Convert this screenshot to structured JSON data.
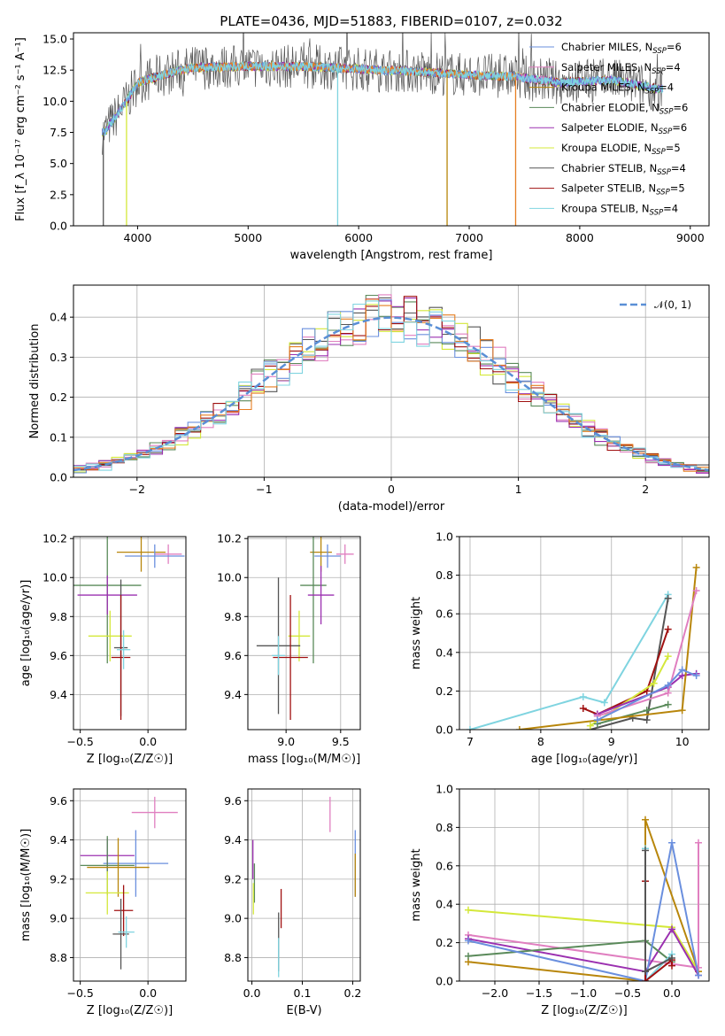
{
  "figure_title": "PLATE=0436, MJD=51883, FIBERID=0107, z=0.032",
  "colors": {
    "Chabrier MILES": "#6a8fde",
    "Salpeter MILES": "#e07fc0",
    "Kroupa MILES": "#b8860b",
    "Chabrier ELODIE": "#5a8a5a",
    "Salpeter ELODIE": "#9b30b0",
    "Kroupa ELODIE": "#d4e83a",
    "Chabrier STELIB": "#555555",
    "Salpeter STELIB": "#a01010",
    "Kroupa STELIB": "#7fd4e0",
    "orange": "#e67e22",
    "normal_curve": "#5a8fd6"
  },
  "chart_data": [
    {
      "id": "spectrum",
      "type": "line",
      "title": "PLATE=0436, MJD=51883, FIBERID=0107, z=0.032",
      "xlabel": "wavelength [Angstrom, rest frame]",
      "ylabel": "Flux [f_λ 10⁻¹⁷ erg cm⁻² s⁻¹ A⁻¹]",
      "xlim": [
        3420,
        9170
      ],
      "ylim": [
        0,
        15.5
      ],
      "xticks": [
        "4000",
        "5000",
        "6000",
        "7000",
        "8000",
        "9000"
      ],
      "yticks": [
        "0.0",
        "2.5",
        "5.0",
        "7.5",
        "10.0",
        "12.5",
        "15.0"
      ],
      "grid": false,
      "legend_position": "upper-right",
      "legend": [
        {
          "model": "Chabrier MILES",
          "n": "6"
        },
        {
          "model": "Salpeter MILES",
          "n": "4"
        },
        {
          "model": "Kroupa MILES",
          "n": "4"
        },
        {
          "model": "Chabrier ELODIE",
          "n": "6"
        },
        {
          "model": "Salpeter ELODIE",
          "n": "6"
        },
        {
          "model": "Kroupa ELODIE",
          "n": "5"
        },
        {
          "model": "Chabrier STELIB",
          "n": "4"
        },
        {
          "model": "Salpeter STELIB",
          "n": "5"
        },
        {
          "model": "Kroupa STELIB",
          "n": "4"
        }
      ],
      "continuum": {
        "x": [
          3700,
          3900,
          4000,
          4300,
          4500,
          5000,
          5500,
          6000,
          6500,
          7000,
          7400,
          7800,
          8300,
          8700
        ],
        "y": [
          7.5,
          10.0,
          11.5,
          12.3,
          12.7,
          12.8,
          12.8,
          12.6,
          12.4,
          12.1,
          12.0,
          11.5,
          11.7,
          11.0
        ]
      }
    },
    {
      "id": "residual_histogram",
      "type": "histogram",
      "xlabel": "(data-model)/error",
      "ylabel": "Normed distribution",
      "xlim": [
        -2.5,
        2.5
      ],
      "ylim": [
        0,
        0.48
      ],
      "xticks": [
        "−2",
        "−1",
        "0",
        "1",
        "2"
      ],
      "yticks": [
        "0.0",
        "0.1",
        "0.2",
        "0.3",
        "0.4"
      ],
      "grid": true,
      "legend_position": "upper-right",
      "legend": [
        "𝒩(0, 1)"
      ],
      "bin_width": 0.1
    },
    {
      "id": "age_vs_Z",
      "type": "errorbar",
      "xlabel": "Z [log₁₀(Z/Z☉)]",
      "ylabel": "age  [log₁₀(age/yr)]",
      "xlim": [
        -0.55,
        0.28
      ],
      "ylim": [
        9.22,
        10.21
      ],
      "xticks": [
        "−0.5",
        "0.0"
      ],
      "yticks": [
        "9.4",
        "9.6",
        "9.8",
        "10.0",
        "10.2"
      ],
      "grid": true,
      "points": [
        {
          "model": "Kroupa MILES",
          "x": -0.05,
          "y": 10.13,
          "xerr": 0.18,
          "yerr": 0.1
        },
        {
          "model": "Salpeter MILES",
          "x": 0.15,
          "y": 10.12,
          "xerr": 0.1,
          "yerr": 0.05
        },
        {
          "model": "Chabrier MILES",
          "x": 0.05,
          "y": 10.11,
          "xerr": 0.22,
          "yerr": 0.06
        },
        {
          "model": "Chabrier ELODIE",
          "x": -0.3,
          "y": 9.96,
          "xerr": 0.25,
          "yerr": 0.4
        },
        {
          "model": "Salpeter ELODIE",
          "x": -0.3,
          "y": 9.91,
          "xerr": 0.22,
          "yerr": 0.1
        },
        {
          "model": "Kroupa ELODIE",
          "x": -0.28,
          "y": 9.7,
          "xerr": 0.16,
          "yerr": 0.13
        },
        {
          "model": "Chabrier STELIB",
          "x": -0.2,
          "y": 9.64,
          "xerr": 0.05,
          "yerr": 0.35
        },
        {
          "model": "Salpeter STELIB",
          "x": -0.2,
          "y": 9.59,
          "xerr": 0.07,
          "yerr": 0.32
        },
        {
          "model": "Kroupa STELIB",
          "x": -0.18,
          "y": 9.63,
          "xerr": 0.05,
          "yerr": 0.1
        }
      ]
    },
    {
      "id": "age_vs_mass",
      "type": "errorbar",
      "xlabel": "mass [log₁₀(M/M☉)]",
      "ylim": [
        9.22,
        10.21
      ],
      "xlim": [
        8.65,
        9.68
      ],
      "xticks": [
        "9.0",
        "9.5"
      ],
      "yticks": [
        "9.4",
        "9.6",
        "9.8",
        "10.0",
        "10.2"
      ],
      "grid": true,
      "points": [
        {
          "model": "Kroupa MILES",
          "x": 9.32,
          "y": 10.13,
          "xerr": 0.1,
          "yerr": 0.1
        },
        {
          "model": "Salpeter MILES",
          "x": 9.54,
          "y": 10.12,
          "xerr": 0.08,
          "yerr": 0.05
        },
        {
          "model": "Chabrier MILES",
          "x": 9.38,
          "y": 10.11,
          "xerr": 0.12,
          "yerr": 0.06
        },
        {
          "model": "Chabrier ELODIE",
          "x": 9.25,
          "y": 9.96,
          "xerr": 0.12,
          "yerr": 0.4
        },
        {
          "model": "Salpeter ELODIE",
          "x": 9.32,
          "y": 9.91,
          "xerr": 0.12,
          "yerr": 0.15
        },
        {
          "model": "Kroupa ELODIE",
          "x": 9.12,
          "y": 9.7,
          "xerr": 0.1,
          "yerr": 0.13
        },
        {
          "model": "Chabrier STELIB",
          "x": 8.93,
          "y": 9.65,
          "xerr": 0.2,
          "yerr": 0.35
        },
        {
          "model": "Salpeter STELIB",
          "x": 9.04,
          "y": 9.59,
          "xerr": 0.16,
          "yerr": 0.32
        },
        {
          "model": "Kroupa STELIB",
          "x": 8.93,
          "y": 9.6,
          "xerr": 0.06,
          "yerr": 0.1
        }
      ]
    },
    {
      "id": "mass_weight_vs_age",
      "type": "line",
      "xlabel": "age  [log₁₀(age/yr)]",
      "ylabel": "mass weight",
      "xlim": [
        6.85,
        10.38
      ],
      "ylim": [
        0,
        1
      ],
      "xticks": [
        "7",
        "8",
        "9",
        "10"
      ],
      "yticks": [
        "0.0",
        "0.2",
        "0.4",
        "0.6",
        "0.8",
        "1.0"
      ],
      "grid": true,
      "series": [
        {
          "model": "Kroupa STELIB",
          "x": [
            7.0,
            8.6,
            8.9,
            9.8
          ],
          "y": [
            0.0,
            0.17,
            0.14,
            0.7
          ]
        },
        {
          "model": "Chabrier STELIB",
          "x": [
            8.7,
            9.3,
            9.5,
            9.8
          ],
          "y": [
            0.0,
            0.06,
            0.05,
            0.68
          ]
        },
        {
          "model": "Salpeter STELIB",
          "x": [
            8.6,
            8.8,
            9.5,
            9.8
          ],
          "y": [
            0.11,
            0.08,
            0.2,
            0.52
          ]
        },
        {
          "model": "Kroupa ELODIE",
          "x": [
            8.7,
            9.6,
            9.8
          ],
          "y": [
            0.02,
            0.24,
            0.38
          ]
        },
        {
          "model": "Chabrier ELODIE",
          "x": [
            8.8,
            9.5,
            9.8
          ],
          "y": [
            0.03,
            0.1,
            0.13
          ]
        },
        {
          "model": "Salpeter ELODIE",
          "x": [
            8.8,
            9.8,
            10.0,
            10.2
          ],
          "y": [
            0.08,
            0.22,
            0.28,
            0.29
          ]
        },
        {
          "model": "Kroupa MILES",
          "x": [
            7.7,
            10.0,
            10.2
          ],
          "y": [
            0.0,
            0.1,
            0.84
          ]
        },
        {
          "model": "Salpeter MILES",
          "x": [
            8.8,
            9.8,
            10.2
          ],
          "y": [
            0.07,
            0.19,
            0.72
          ]
        },
        {
          "model": "Chabrier MILES",
          "x": [
            8.8,
            9.8,
            10.0,
            10.2
          ],
          "y": [
            0.05,
            0.23,
            0.31,
            0.28
          ]
        }
      ]
    },
    {
      "id": "mass_vs_Z",
      "type": "errorbar",
      "xlabel": "Z [log₁₀(Z/Z☉)]",
      "ylabel": "mass [log₁₀(M/M☉)]",
      "xlim": [
        -0.55,
        0.28
      ],
      "ylim": [
        8.68,
        9.66
      ],
      "xticks": [
        "−0.5",
        "0.0"
      ],
      "yticks": [
        "8.8",
        "9.0",
        "9.2",
        "9.4",
        "9.6"
      ],
      "grid": true,
      "points": [
        {
          "model": "Salpeter MILES",
          "x": 0.05,
          "y": 9.54,
          "xerr": 0.17,
          "yerr": 0.08
        },
        {
          "model": "Chabrier MILES",
          "x": -0.09,
          "y": 9.28,
          "xerr": 0.24,
          "yerr": 0.17
        },
        {
          "model": "Salpeter ELODIE",
          "x": -0.3,
          "y": 9.32,
          "xerr": 0.2,
          "yerr": 0.09
        },
        {
          "model": "Chabrier ELODIE",
          "x": -0.3,
          "y": 9.27,
          "xerr": 0.2,
          "yerr": 0.15
        },
        {
          "model": "Kroupa MILES",
          "x": -0.22,
          "y": 9.26,
          "xerr": 0.23,
          "yerr": 0.15
        },
        {
          "model": "Kroupa ELODIE",
          "x": -0.3,
          "y": 9.13,
          "xerr": 0.16,
          "yerr": 0.11
        },
        {
          "model": "Salpeter STELIB",
          "x": -0.18,
          "y": 9.04,
          "xerr": 0.07,
          "yerr": 0.13
        },
        {
          "model": "Chabrier STELIB",
          "x": -0.2,
          "y": 8.92,
          "xerr": 0.06,
          "yerr": 0.18
        },
        {
          "model": "Kroupa STELIB",
          "x": -0.16,
          "y": 8.93,
          "xerr": 0.06,
          "yerr": 0.08
        }
      ]
    },
    {
      "id": "mass_vs_EBV",
      "type": "errorbar",
      "xlabel": "E(B-V)",
      "xlim": [
        -0.008,
        0.215
      ],
      "ylim": [
        8.68,
        9.66
      ],
      "xticks": [
        "0.0",
        "0.1",
        "0.2"
      ],
      "yticks": [
        "8.8",
        "9.0",
        "9.2",
        "9.4",
        "9.6"
      ],
      "grid": true,
      "points": [
        {
          "model": "Salpeter MILES",
          "x": 0.155,
          "y": 9.53,
          "xerr": 0.0,
          "yerr": 0.09
        },
        {
          "model": "Chabrier MILES",
          "x": 0.205,
          "y": 9.28,
          "xerr": 0.0,
          "yerr": 0.17
        },
        {
          "model": "Kroupa MILES",
          "x": 0.205,
          "y": 9.22,
          "xerr": 0.0,
          "yerr": 0.11
        },
        {
          "model": "Salpeter ELODIE",
          "x": 0.002,
          "y": 9.3,
          "xerr": 0.0,
          "yerr": 0.1
        },
        {
          "model": "Chabrier ELODIE",
          "x": 0.005,
          "y": 9.18,
          "xerr": 0.0,
          "yerr": 0.1
        },
        {
          "model": "Kroupa ELODIE",
          "x": 0.003,
          "y": 9.1,
          "xerr": 0.0,
          "yerr": 0.08
        },
        {
          "model": "Salpeter STELIB",
          "x": 0.058,
          "y": 9.05,
          "xerr": 0.0,
          "yerr": 0.1
        },
        {
          "model": "Chabrier STELIB",
          "x": 0.053,
          "y": 8.88,
          "xerr": 0.0,
          "yerr": 0.15
        },
        {
          "model": "Kroupa STELIB",
          "x": 0.053,
          "y": 8.8,
          "xerr": 0.0,
          "yerr": 0.1
        }
      ]
    },
    {
      "id": "mass_weight_vs_Z",
      "type": "line",
      "xlabel": "Z [log₁₀(Z/Z☉)]",
      "ylabel": "mass weight",
      "xlim": [
        -2.4,
        0.42
      ],
      "ylim": [
        0,
        1
      ],
      "xticks": [
        "−2.0",
        "−1.5",
        "−1.0",
        "−0.5",
        "0.0"
      ],
      "yticks": [
        "0.0",
        "0.2",
        "0.4",
        "0.6",
        "0.8",
        "1.0"
      ],
      "grid": true,
      "series": [
        {
          "model": "Kroupa ELODIE",
          "x": [
            -2.3,
            0.0,
            0.3
          ],
          "y": [
            0.37,
            0.28,
            0.05
          ]
        },
        {
          "model": "Kroupa MILES",
          "x": [
            -2.3,
            -0.3,
            -0.3,
            0.3
          ],
          "y": [
            0.1,
            0.0,
            0.84,
            0.05
          ]
        },
        {
          "model": "Salpeter MILES",
          "x": [
            -2.3,
            0.3,
            0.3
          ],
          "y": [
            0.24,
            0.07,
            0.72
          ]
        },
        {
          "model": "Salpeter ELODIE",
          "x": [
            -2.3,
            -0.3,
            0.0,
            0.3
          ],
          "y": [
            0.22,
            0.05,
            0.27,
            0.03
          ]
        },
        {
          "model": "Chabrier ELODIE",
          "x": [
            -2.3,
            -0.3,
            0.0
          ],
          "y": [
            0.13,
            0.21,
            0.1
          ]
        },
        {
          "model": "Chabrier MILES",
          "x": [
            -2.3,
            -0.3,
            0.0,
            0.3
          ],
          "y": [
            0.21,
            0.0,
            0.72,
            0.03
          ]
        },
        {
          "model": "Kroupa STELIB",
          "x": [
            -0.3,
            -0.3,
            0.0
          ],
          "y": [
            0.69,
            0.0,
            0.14
          ]
        },
        {
          "model": "Salpeter STELIB",
          "x": [
            -0.3,
            -0.3,
            0.0,
            0.0
          ],
          "y": [
            0.52,
            0.0,
            0.11,
            0.08
          ]
        },
        {
          "model": "Chabrier STELIB",
          "x": [
            -0.3,
            -0.3,
            0.0
          ],
          "y": [
            0.68,
            0.05,
            0.12
          ]
        }
      ]
    }
  ]
}
